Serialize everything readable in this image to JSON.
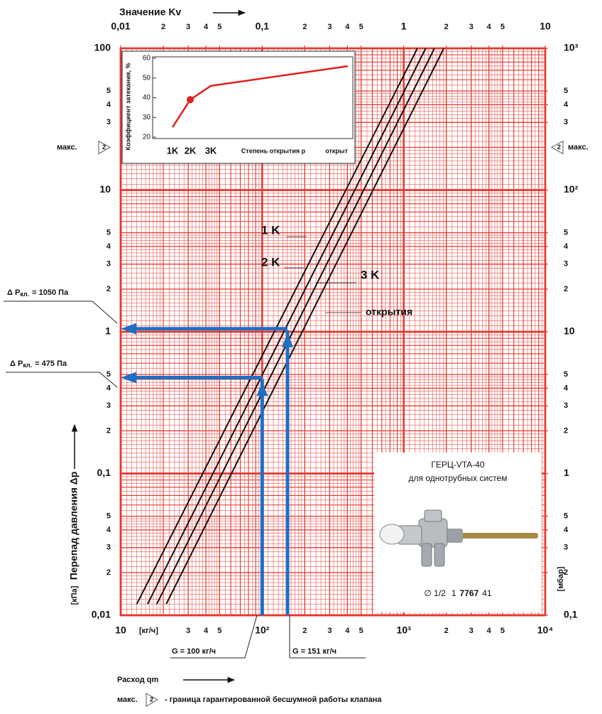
{
  "chart_data": [
    {
      "type": "line",
      "x_label": "Расход qm",
      "x2_label": "Значение Kv",
      "y_label": "Перепад давления Δp",
      "x_unit": "[кг/ч]",
      "y_unit": "[кПа]",
      "y2_unit": "[мбар]",
      "xscale": "log",
      "yscale": "log",
      "xlim": [
        10,
        10000
      ],
      "ylim": [
        0.01,
        100
      ],
      "x2lim": [
        0.01,
        10
      ],
      "y2lim": [
        0.1,
        1000
      ],
      "xticks": [
        10,
        {
          "value": 30,
          "label": "3"
        },
        {
          "value": 40,
          "label": "4"
        },
        {
          "value": 50,
          "label": "5"
        },
        {
          "value": 100,
          "label": "10²"
        },
        {
          "value": 200,
          "label": "2"
        },
        {
          "value": 300,
          "label": "3"
        },
        {
          "value": 400,
          "label": "4"
        },
        {
          "value": 500,
          "label": "5"
        },
        {
          "value": 1000,
          "label": "10³"
        },
        {
          "value": 2000,
          "label": "2"
        },
        {
          "value": 3000,
          "label": "3"
        },
        {
          "value": 4000,
          "label": "4"
        },
        {
          "value": 5000,
          "label": "5"
        },
        {
          "value": 10000,
          "label": "10⁴"
        }
      ],
      "x2ticks": [
        {
          "value": 0.01,
          "label": "0,01"
        },
        {
          "value": 0.02,
          "label": "2"
        },
        {
          "value": 0.03,
          "label": "3"
        },
        {
          "value": 0.04,
          "label": "4"
        },
        {
          "value": 0.05,
          "label": "5"
        },
        {
          "value": 0.1,
          "label": "0,1"
        },
        {
          "value": 0.2,
          "label": "2"
        },
        {
          "value": 0.3,
          "label": "3"
        },
        {
          "value": 0.4,
          "label": "4"
        },
        {
          "value": 0.5,
          "label": "5"
        },
        1,
        2,
        3,
        4,
        5,
        10
      ],
      "yticks": [
        100,
        {
          "value": 50,
          "label": "5"
        },
        {
          "value": 40,
          "label": "4"
        },
        {
          "value": 30,
          "label": "3"
        },
        10,
        5,
        4,
        3,
        2,
        1,
        {
          "value": 0.5,
          "label": "5"
        },
        {
          "value": 0.4,
          "label": "4"
        },
        {
          "value": 0.3,
          "label": "3"
        },
        {
          "value": 0.2,
          "label": "2"
        },
        {
          "value": 0.1,
          "label": "0,1"
        },
        {
          "value": 0.05,
          "label": "5"
        },
        {
          "value": 0.04,
          "label": "4"
        },
        {
          "value": 0.03,
          "label": "3"
        },
        {
          "value": 0.02,
          "label": "2"
        },
        {
          "value": 0.01,
          "label": "0,01"
        }
      ],
      "y2ticks": [
        {
          "value": 1000,
          "label": "10³"
        },
        {
          "value": 500,
          "label": "5"
        },
        {
          "value": 400,
          "label": "4"
        },
        {
          "value": 300,
          "label": "3"
        },
        {
          "value": 100,
          "label": "10²"
        },
        {
          "value": 50,
          "label": "5"
        },
        {
          "value": 40,
          "label": "4"
        },
        {
          "value": 30,
          "label": "3"
        },
        {
          "value": 20,
          "label": "2"
        },
        10,
        5,
        4,
        3,
        2,
        1,
        {
          "value": 0.5,
          "label": "5"
        },
        {
          "value": 0.4,
          "label": "4"
        },
        {
          "value": 0.3,
          "label": "3"
        },
        {
          "value": 0.2,
          "label": "2"
        },
        {
          "value": 0.1,
          "label": "0,1"
        }
      ],
      "grid": true,
      "grid_color": "#e8352c",
      "series": [
        {
          "name": "1 K",
          "color": "#111111",
          "x": [
            13,
            1250
          ],
          "values": [
            0.012,
            100
          ]
        },
        {
          "name": "2 K",
          "color": "#111111",
          "x": [
            15.5,
            1430
          ],
          "values": [
            0.012,
            100
          ]
        },
        {
          "name": "3 K",
          "color": "#111111",
          "x": [
            18,
            1650
          ],
          "values": [
            0.012,
            100
          ]
        },
        {
          "name": "открытия",
          "color": "#111111",
          "x": [
            21,
            1920
          ],
          "values": [
            0.012,
            100
          ]
        }
      ],
      "arrow_color": "#1f6fc2",
      "operating_points": [
        {
          "x": 100,
          "y": 0.475,
          "x_label": "G = 100 кг/ч",
          "y_label": {
            "symbol": "Δ P",
            "sub": "кл.",
            "text": "= 475 Па"
          }
        },
        {
          "x": 151,
          "y": 1.05,
          "x_label": "G = 151 кг/ч",
          "y_label": {
            "symbol": "Δ P",
            "sub": "кл.",
            "text": "= 1050 Па"
          }
        }
      ],
      "max_marker": {
        "label": "макс.",
        "symbol": "2",
        "y": 20
      }
    },
    {
      "type": "line",
      "y_label": "Коэффициент затекания, %",
      "x_label": "Степень открытия р",
      "categories": [
        "1K",
        "2K",
        "3K",
        "открыт"
      ],
      "values": [
        25,
        39,
        46,
        56
      ],
      "color": "#e0201b",
      "highlight": 1,
      "ylim": [
        20,
        60
      ],
      "yticks": [
        20,
        30,
        40,
        50,
        60
      ]
    }
  ],
  "product": {
    "title": "ГЕРЦ-VTA-40",
    "subtitle": "для однотрубных систем",
    "code": [
      "∅ 1/2",
      "1",
      "7767",
      "41"
    ]
  },
  "footnote": {
    "label": "макс.",
    "symbol": "2",
    "text": "- граница гарантированной бесшумной работы клапана"
  }
}
